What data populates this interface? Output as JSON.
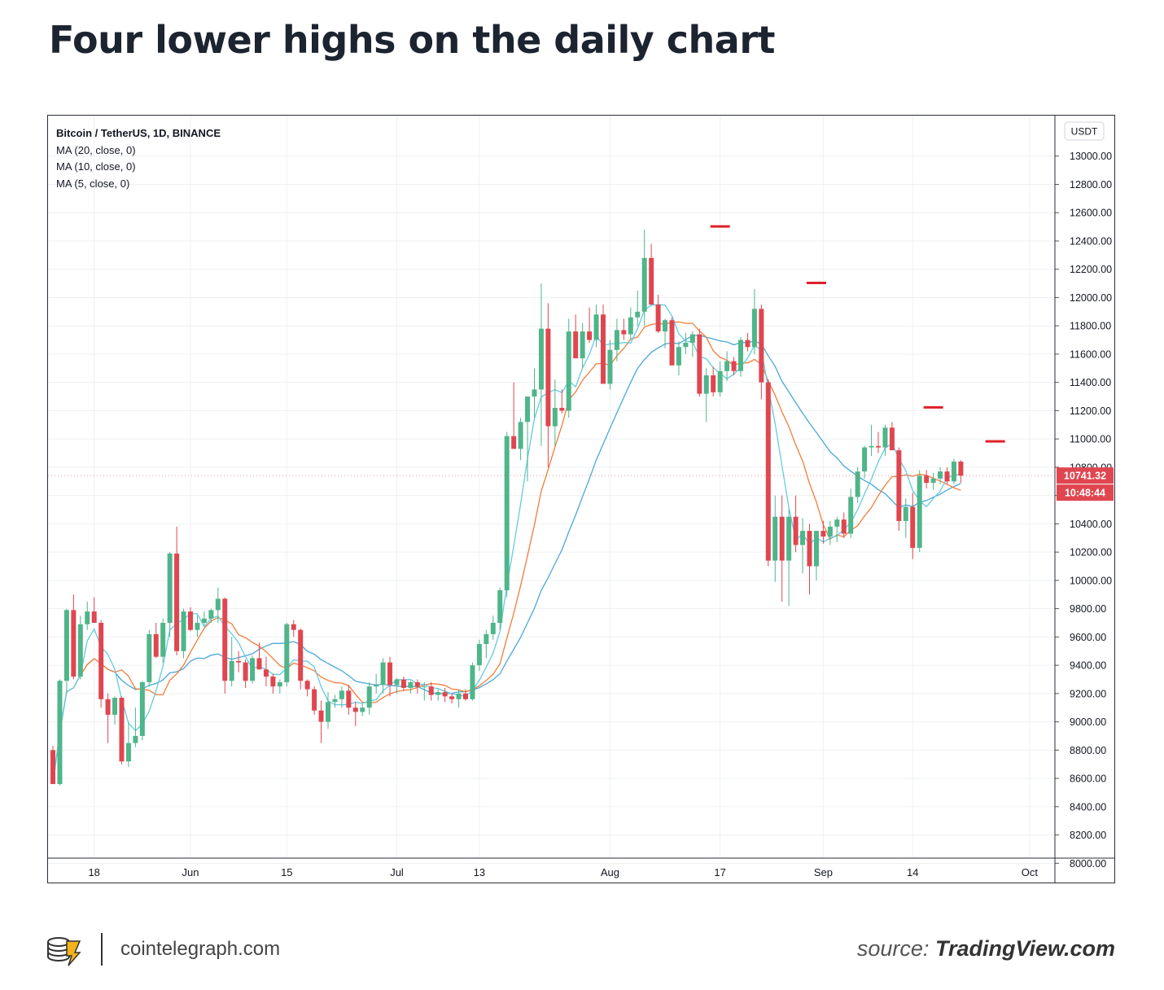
{
  "page": {
    "title": "Four lower highs on the daily chart",
    "footer_site": "cointelegraph.com",
    "source_prefix": "source: ",
    "source_name": "TradingView.com"
  },
  "legend": {
    "pair": "Bitcoin / TetherUS, 1D, BINANCE",
    "ma20": "MA (20, close, 0)",
    "ma10": "MA (10, close, 0)",
    "ma5": "MA (5, close, 0)"
  },
  "colors": {
    "up": "#4fb58a",
    "down": "#e04650",
    "ma20": "#4aa8d8",
    "ma10": "#f07d3c",
    "ma5": "#63cbe0",
    "high_marker": "#e0202a",
    "grid": "#eef0f3"
  },
  "chart_data": {
    "type": "candlestick",
    "currency_label": "USDT",
    "price_label": "10741.32",
    "countdown_label": "10:48:44",
    "ylim": [
      7950,
      13200
    ],
    "y_ticks": [
      8000,
      8200,
      8400,
      8600,
      8800,
      9000,
      9200,
      9400,
      9600,
      9800,
      10000,
      10200,
      10400,
      10600,
      10800,
      11000,
      11200,
      11400,
      11600,
      11800,
      12000,
      12200,
      12400,
      12600,
      12800,
      13000
    ],
    "x_labels": [
      {
        "label": "18",
        "day": 6
      },
      {
        "label": "Jun",
        "day": 20
      },
      {
        "label": "15",
        "day": 34
      },
      {
        "label": "Jul",
        "day": 50
      },
      {
        "label": "13",
        "day": 62
      },
      {
        "label": "Aug",
        "day": 81
      },
      {
        "label": "17",
        "day": 97
      },
      {
        "label": "Sep",
        "day": 112
      },
      {
        "label": "14",
        "day": 125
      },
      {
        "label": "Oct",
        "day": 142
      }
    ],
    "candles": [
      [
        8800,
        8830,
        8560,
        8560
      ],
      [
        8560,
        9300,
        8550,
        9290
      ],
      [
        9290,
        9800,
        9200,
        9790
      ],
      [
        9790,
        9900,
        9300,
        9320
      ],
      [
        9320,
        9750,
        9300,
        9690
      ],
      [
        9690,
        9850,
        9650,
        9780
      ],
      [
        9780,
        9880,
        9700,
        9700
      ],
      [
        9700,
        9720,
        9100,
        9160
      ],
      [
        9160,
        9200,
        8850,
        9050
      ],
      [
        9050,
        9180,
        8980,
        9170
      ],
      [
        9170,
        9180,
        8700,
        8720
      ],
      [
        8720,
        9000,
        8680,
        8850
      ],
      [
        8850,
        9100,
        8820,
        8900
      ],
      [
        8900,
        9290,
        8870,
        9280
      ],
      [
        9280,
        9650,
        9250,
        9620
      ],
      [
        9620,
        9700,
        9450,
        9460
      ],
      [
        9460,
        9730,
        9420,
        9700
      ],
      [
        9700,
        10200,
        9600,
        10190
      ],
      [
        10190,
        10380,
        9470,
        9500
      ],
      [
        9500,
        9800,
        9450,
        9780
      ],
      [
        9780,
        9810,
        9640,
        9650
      ],
      [
        9650,
        9750,
        9600,
        9700
      ],
      [
        9700,
        9780,
        9680,
        9730
      ],
      [
        9730,
        9800,
        9700,
        9790
      ],
      [
        9790,
        9950,
        9700,
        9870
      ],
      [
        9870,
        9880,
        9200,
        9290
      ],
      [
        9290,
        9600,
        9250,
        9430
      ],
      [
        9430,
        9500,
        9350,
        9420
      ],
      [
        9420,
        9440,
        9240,
        9290
      ],
      [
        9290,
        9470,
        9270,
        9450
      ],
      [
        9450,
        9560,
        9400,
        9370
      ],
      [
        9370,
        9460,
        9250,
        9320
      ],
      [
        9320,
        9340,
        9200,
        9250
      ],
      [
        9250,
        9300,
        9200,
        9280
      ],
      [
        9280,
        9700,
        9250,
        9690
      ],
      [
        9690,
        9720,
        9600,
        9650
      ],
      [
        9650,
        9660,
        9230,
        9290
      ],
      [
        9290,
        9300,
        9180,
        9230
      ],
      [
        9230,
        9250,
        9050,
        9080
      ],
      [
        9080,
        9150,
        8850,
        9000
      ],
      [
        9000,
        9210,
        8950,
        9140
      ],
      [
        9140,
        9190,
        9100,
        9160
      ],
      [
        9160,
        9250,
        9100,
        9220
      ],
      [
        9220,
        9260,
        9050,
        9100
      ],
      [
        9100,
        9140,
        8970,
        9070
      ],
      [
        9070,
        9130,
        9040,
        9100
      ],
      [
        9100,
        9280,
        9050,
        9250
      ],
      [
        9250,
        9340,
        9200,
        9260
      ],
      [
        9260,
        9450,
        9200,
        9420
      ],
      [
        9420,
        9460,
        9180,
        9260
      ],
      [
        9260,
        9310,
        9200,
        9300
      ],
      [
        9300,
        9320,
        9220,
        9240
      ],
      [
        9240,
        9290,
        9200,
        9280
      ],
      [
        9280,
        9300,
        9200,
        9250
      ],
      [
        9250,
        9280,
        9150,
        9250
      ],
      [
        9250,
        9280,
        9150,
        9190
      ],
      [
        9190,
        9230,
        9150,
        9210
      ],
      [
        9210,
        9240,
        9140,
        9180
      ],
      [
        9180,
        9200,
        9130,
        9160
      ],
      [
        9160,
        9230,
        9100,
        9200
      ],
      [
        9200,
        9230,
        9150,
        9160
      ],
      [
        9160,
        9420,
        9150,
        9400
      ],
      [
        9400,
        9580,
        9360,
        9550
      ],
      [
        9550,
        9650,
        9450,
        9620
      ],
      [
        9620,
        9750,
        9580,
        9700
      ],
      [
        9700,
        9950,
        9650,
        9930
      ],
      [
        9930,
        11050,
        9880,
        11020
      ],
      [
        11020,
        11400,
        10950,
        10930
      ],
      [
        10930,
        11150,
        10850,
        11120
      ],
      [
        11120,
        11300,
        10700,
        11300
      ],
      [
        11300,
        11500,
        11150,
        11350
      ],
      [
        11350,
        12100,
        10950,
        11780
      ],
      [
        11780,
        11960,
        10800,
        11090
      ],
      [
        11090,
        11420,
        10950,
        11220
      ],
      [
        11220,
        11350,
        11180,
        11200
      ],
      [
        11200,
        11850,
        11150,
        11760
      ],
      [
        11760,
        11880,
        11600,
        11570
      ],
      [
        11570,
        11820,
        11500,
        11760
      ],
      [
        11760,
        11930,
        11680,
        11700
      ],
      [
        11700,
        11950,
        11650,
        11880
      ],
      [
        11880,
        11950,
        11400,
        11390
      ],
      [
        11390,
        11700,
        11350,
        11630
      ],
      [
        11630,
        11850,
        11550,
        11770
      ],
      [
        11770,
        11850,
        11700,
        11740
      ],
      [
        11740,
        11930,
        11700,
        11860
      ],
      [
        11860,
        12050,
        11800,
        11900
      ],
      [
        11900,
        12480,
        11800,
        12280
      ],
      [
        12280,
        12380,
        11950,
        11950
      ],
      [
        11950,
        12020,
        11750,
        11760
      ],
      [
        11760,
        11850,
        11640,
        11840
      ],
      [
        11840,
        11860,
        11530,
        11520
      ],
      [
        11520,
        11690,
        11450,
        11650
      ],
      [
        11650,
        11750,
        11600,
        11680
      ],
      [
        11680,
        11760,
        11580,
        11740
      ],
      [
        11740,
        11780,
        11300,
        11320
      ],
      [
        11320,
        11500,
        11120,
        11450
      ],
      [
        11450,
        11510,
        11300,
        11330
      ],
      [
        11330,
        11550,
        11300,
        11480
      ],
      [
        11480,
        11620,
        11410,
        11550
      ],
      [
        11550,
        11580,
        11450,
        11480
      ],
      [
        11480,
        11720,
        11440,
        11700
      ],
      [
        11700,
        11750,
        11620,
        11650
      ],
      [
        11650,
        12060,
        11600,
        11920
      ],
      [
        11920,
        11950,
        11280,
        11400
      ],
      [
        11400,
        11420,
        10100,
        10140
      ],
      [
        10140,
        10600,
        9990,
        10450
      ],
      [
        10450,
        10600,
        9850,
        10140
      ],
      [
        10140,
        10500,
        9820,
        10450
      ],
      [
        10450,
        10600,
        10200,
        10250
      ],
      [
        10250,
        10440,
        10050,
        10350
      ],
      [
        10350,
        10400,
        9900,
        10100
      ],
      [
        10100,
        10350,
        10000,
        10350
      ],
      [
        10350,
        10420,
        10260,
        10310
      ],
      [
        10310,
        10420,
        10250,
        10380
      ],
      [
        10380,
        10450,
        10270,
        10430
      ],
      [
        10430,
        10480,
        10300,
        10330
      ],
      [
        10330,
        10650,
        10300,
        10590
      ],
      [
        10590,
        10800,
        10550,
        10770
      ],
      [
        10770,
        10950,
        10720,
        10940
      ],
      [
        10940,
        11100,
        10880,
        10950
      ],
      [
        10950,
        11050,
        10900,
        10940
      ],
      [
        10940,
        11100,
        10880,
        11080
      ],
      [
        11080,
        11120,
        10930,
        10920
      ],
      [
        10920,
        10940,
        10350,
        10420
      ],
      [
        10420,
        10580,
        10300,
        10520
      ],
      [
        10520,
        10620,
        10150,
        10230
      ],
      [
        10230,
        10780,
        10200,
        10740
      ],
      [
        10740,
        10780,
        10650,
        10690
      ],
      [
        10690,
        10760,
        10640,
        10720
      ],
      [
        10720,
        10800,
        10680,
        10770
      ],
      [
        10770,
        10800,
        10680,
        10700
      ],
      [
        10700,
        10860,
        10680,
        10840
      ],
      [
        10840,
        10850,
        10690,
        10740
      ]
    ],
    "high_markers": [
      {
        "day": 97,
        "price": 12480
      },
      {
        "day": 111,
        "price": 12080
      },
      {
        "day": 128,
        "price": 11200
      },
      {
        "day": 137,
        "price": 10960
      }
    ]
  }
}
